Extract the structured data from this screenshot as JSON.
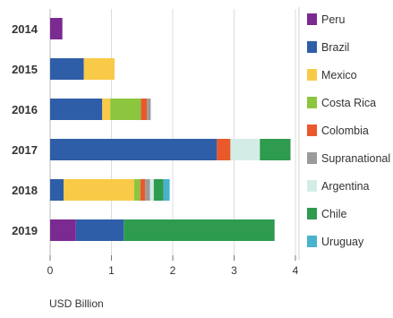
{
  "chart_data": {
    "type": "bar",
    "orientation": "horizontal",
    "stacked": true,
    "categories": [
      "2014",
      "2015",
      "2016",
      "2017",
      "2018",
      "2019"
    ],
    "series": [
      {
        "name": "Peru",
        "color": "#7b2a91",
        "values": [
          0.2,
          0,
          0,
          0,
          0,
          0.42
        ]
      },
      {
        "name": "Brazil",
        "color": "#2f5ea8",
        "values": [
          0,
          0.55,
          0.85,
          2.72,
          0.22,
          0.78
        ]
      },
      {
        "name": "Mexico",
        "color": "#f9c948",
        "values": [
          0,
          0.5,
          0.13,
          0,
          1.15,
          0
        ]
      },
      {
        "name": "Costa Rica",
        "color": "#8cc63f",
        "values": [
          0,
          0,
          0.5,
          0,
          0.1,
          0
        ]
      },
      {
        "name": "Colombia",
        "color": "#e9592b",
        "values": [
          0,
          0,
          0.1,
          0.22,
          0.08,
          0
        ]
      },
      {
        "name": "Supranational",
        "color": "#9b9b9b",
        "values": [
          0,
          0,
          0.06,
          0,
          0.08,
          0
        ]
      },
      {
        "name": "Argentina",
        "color": "#d3ede6",
        "values": [
          0,
          0,
          0,
          0.48,
          0.06,
          0
        ]
      },
      {
        "name": "Chile",
        "color": "#2e9b4f",
        "values": [
          0,
          0,
          0,
          0.5,
          0.16,
          2.46
        ]
      },
      {
        "name": "Uruguay",
        "color": "#49b3cc",
        "values": [
          0,
          0,
          0,
          0,
          0.1,
          0
        ]
      }
    ],
    "xlabel": "USD Billion",
    "xlim": [
      0,
      4
    ],
    "xticks": [
      "0",
      "1",
      "2",
      "3",
      "4"
    ],
    "grid": true,
    "legend_position": "right"
  }
}
